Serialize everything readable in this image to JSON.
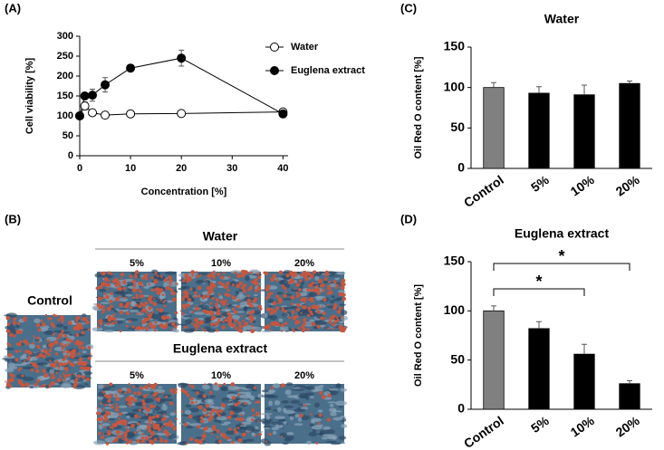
{
  "chart_data": [
    {
      "type": "line",
      "label": "(A)",
      "xlabel": "Concentration [%]",
      "ylabel": "Cell viability [%]",
      "x": [
        0,
        1,
        2.5,
        5,
        10,
        20,
        40
      ],
      "xlim": [
        0,
        41
      ],
      "xticks": [
        0,
        10,
        20,
        30,
        40
      ],
      "ylim": [
        0,
        300
      ],
      "yticks": [
        0,
        50,
        100,
        150,
        200,
        250,
        300
      ],
      "legend": "upper right",
      "series": [
        {
          "name": "Water",
          "color": "#000000",
          "marker_fill": "#ffffff",
          "values": [
            100,
            125,
            108,
            102,
            105,
            106,
            110
          ],
          "errors": [
            0,
            10,
            4,
            3,
            4,
            8,
            3
          ]
        },
        {
          "name": "Euglena extract",
          "color": "#000000",
          "marker_fill": "#000000",
          "values": [
            100,
            150,
            152,
            178,
            220,
            245,
            105
          ],
          "errors": [
            0,
            4,
            15,
            18,
            4,
            20,
            3
          ]
        }
      ]
    },
    {
      "type": "bar",
      "label": "(C)",
      "title": "Water",
      "ylabel": "Oil Red O content [%]",
      "categories": [
        "Control",
        "5%",
        "10%",
        "20%"
      ],
      "values": [
        100,
        93,
        91,
        105
      ],
      "errors": [
        6,
        8,
        12,
        3
      ],
      "colors": [
        "#808080",
        "#000000",
        "#000000",
        "#000000"
      ],
      "ylim": [
        0,
        150
      ],
      "yticks": [
        0,
        50,
        100,
        150
      ]
    },
    {
      "type": "bar",
      "label": "(D)",
      "title": "Euglena extract",
      "ylabel": "Oil Red O content [%]",
      "categories": [
        "Control",
        "5%",
        "10%",
        "20%"
      ],
      "values": [
        100,
        82,
        56,
        26
      ],
      "errors": [
        5,
        7,
        10,
        3
      ],
      "colors": [
        "#808080",
        "#000000",
        "#000000",
        "#000000"
      ],
      "ylim": [
        0,
        150
      ],
      "yticks": [
        0,
        50,
        100,
        150
      ],
      "annotations": [
        {
          "from": 0,
          "to": 3,
          "text": "*"
        },
        {
          "from": 0,
          "to": 2,
          "text": "*"
        }
      ]
    }
  ],
  "panel_b": {
    "label": "(B)",
    "control": "Control",
    "groups": [
      {
        "title": "Water",
        "columns": [
          "5%",
          "10%",
          "20%"
        ]
      },
      {
        "title": "Euglena extract",
        "columns": [
          "5%",
          "10%",
          "20%"
        ]
      }
    ]
  }
}
